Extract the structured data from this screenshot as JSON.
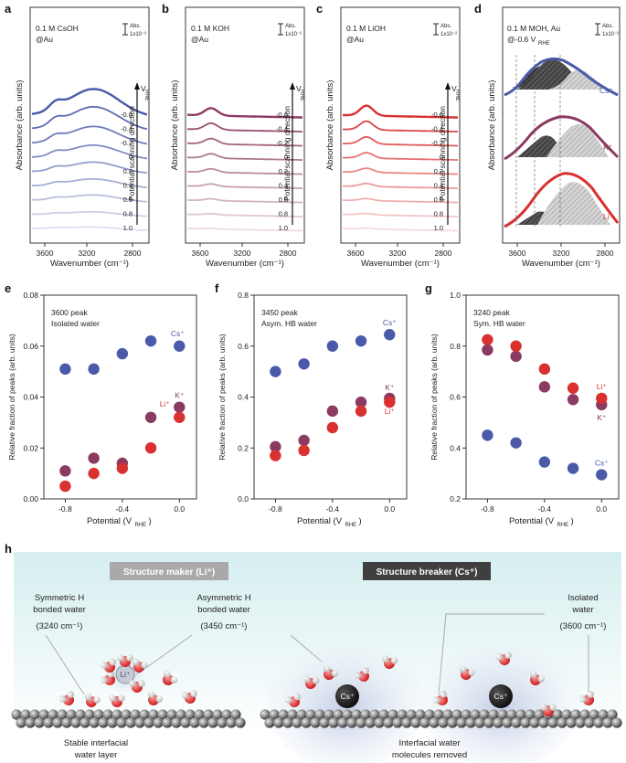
{
  "panels": {
    "a": "a",
    "b": "b",
    "c": "c",
    "d": "d",
    "e": "e",
    "f": "f",
    "g": "g",
    "h": "h"
  },
  "spectra": {
    "ylabel": "Absorbance (arb. units)",
    "xlabel": "Wavenumber (cm⁻¹)",
    "xticks": [
      "3600",
      "3200",
      "2800"
    ],
    "scale_abs": "Abs.",
    "scale_val": "1x10⁻²",
    "vrhe_label": "V",
    "vrhe_sub": "RHE",
    "scan_label": "Potential scanning direction",
    "potentials": [
      "-0.6",
      "-0.4",
      "-0.2",
      "0",
      "0.2",
      "0.4",
      "0.6",
      "0.8",
      "1.0"
    ],
    "a": {
      "l1": "0.1 M CsOH",
      "l2": "@Au",
      "color": "#4a5aa8"
    },
    "b": {
      "l1": "0.1 M KOH",
      "l2": "@Au",
      "color": "#8b3a62"
    },
    "c": {
      "l1": "0.1 M LiOH",
      "l2": "@Au",
      "color": "#d93030"
    },
    "d": {
      "l1": "0.1 M MOH, Au",
      "l2": "@-0.6 V",
      "l2sub": "RHE",
      "ions": [
        "Cs⁺",
        "K⁺",
        "Li⁺"
      ],
      "colors": [
        "#4a5aa8",
        "#8b3a62",
        "#d93030"
      ]
    }
  },
  "scatter": {
    "ylabel": "Relative fraction of peaks (arb. units)",
    "xlabel": "Potential (V",
    "xlabel_sub": "RHE",
    "xlabel_end": ")",
    "xticks": [
      "-0.8",
      "-0.4",
      "0.0"
    ],
    "colors": {
      "Cs": "#4a5aa8",
      "K": "#8b3a62",
      "Li": "#d93030"
    },
    "labels": {
      "Cs": "Cs⁺",
      "K": "K⁺",
      "Li": "Li⁺"
    }
  },
  "chart_data": [
    {
      "type": "scatter",
      "title": "3600 peak",
      "subtitle": "Isolated water",
      "ylim": [
        0,
        0.08
      ],
      "yticks": [
        "0.00",
        "0.02",
        "0.04",
        "0.06",
        "0.08"
      ],
      "x": [
        -0.8,
        -0.6,
        -0.4,
        -0.2,
        0.0
      ],
      "series": [
        {
          "name": "Cs",
          "values": [
            0.051,
            0.051,
            0.057,
            0.062,
            0.06
          ]
        },
        {
          "name": "K",
          "values": [
            0.011,
            0.016,
            0.014,
            0.032,
            0.036
          ]
        },
        {
          "name": "Li",
          "values": [
            0.005,
            0.01,
            0.012,
            0.02,
            0.032
          ]
        }
      ]
    },
    {
      "type": "scatter",
      "title": "3450 peak",
      "subtitle": "Asym. HB water",
      "ylim": [
        0,
        0.8
      ],
      "yticks": [
        "0.0",
        "0.2",
        "0.4",
        "0.6",
        "0.8"
      ],
      "x": [
        -0.8,
        -0.6,
        -0.4,
        -0.2,
        0.0
      ],
      "series": [
        {
          "name": "Cs",
          "values": [
            0.5,
            0.53,
            0.6,
            0.62,
            0.645
          ]
        },
        {
          "name": "K",
          "values": [
            0.205,
            0.23,
            0.345,
            0.38,
            0.395
          ]
        },
        {
          "name": "Li",
          "values": [
            0.17,
            0.19,
            0.28,
            0.345,
            0.38
          ]
        }
      ]
    },
    {
      "type": "scatter",
      "title": "3240 peak",
      "subtitle": "Sym. HB water",
      "ylim": [
        0.2,
        1.0
      ],
      "yticks": [
        "0.2",
        "0.4",
        "0.6",
        "0.8",
        "1.0"
      ],
      "x": [
        -0.8,
        -0.6,
        -0.4,
        -0.2,
        0.0
      ],
      "series": [
        {
          "name": "Cs",
          "values": [
            0.45,
            0.42,
            0.345,
            0.32,
            0.295
          ]
        },
        {
          "name": "K",
          "values": [
            0.785,
            0.76,
            0.64,
            0.59,
            0.57
          ]
        },
        {
          "name": "Li",
          "values": [
            0.825,
            0.8,
            0.71,
            0.635,
            0.595
          ]
        }
      ]
    }
  ],
  "illustration": {
    "left_banner": "Structure maker (Li⁺)",
    "right_banner": "Structure breaker (Cs⁺)",
    "sym": [
      "Symmetric H",
      "bonded water",
      "(3240 cm⁻¹)"
    ],
    "asym": [
      "Asymmetric H",
      "bonded water",
      "(3450 cm⁻¹)"
    ],
    "iso": [
      "Isolated",
      "water",
      "(3600 cm⁻¹)"
    ],
    "left_caption": [
      "Stable interfacial",
      "water layer"
    ],
    "right_caption": [
      "Interfacial water",
      "molecules removed"
    ],
    "li_ion": "Li⁺",
    "cs_ion": "Cs⁺"
  }
}
